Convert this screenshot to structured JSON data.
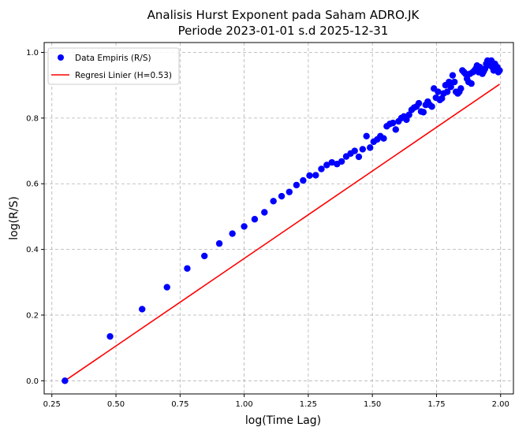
{
  "chart_data": {
    "type": "scatter",
    "title": "Analisis Hurst Exponent pada Saham ADRO.JK",
    "subtitle": "Periode 2023-01-01 s.d 2025-12-31",
    "xlabel": "log(Time Lag)",
    "ylabel": "log(R/S)",
    "xlim": [
      0.22,
      2.05
    ],
    "ylim": [
      -0.04,
      1.03
    ],
    "xticks": [
      "0.25",
      "0.50",
      "0.75",
      "1.00",
      "1.25",
      "1.50",
      "1.75",
      "2.00"
    ],
    "xtick_values": [
      0.25,
      0.5,
      0.75,
      1.0,
      1.25,
      1.5,
      1.75,
      2.0
    ],
    "yticks": [
      "0.0",
      "0.2",
      "0.4",
      "0.6",
      "0.8",
      "1.0"
    ],
    "ytick_values": [
      0.0,
      0.2,
      0.4,
      0.6,
      0.8,
      1.0
    ],
    "grid": true,
    "legend_position": "top-left",
    "series": [
      {
        "name": "Data Empiris (R/S)",
        "kind": "scatter",
        "color": "#0000ff",
        "x": [
          0.301,
          0.477,
          0.602,
          0.699,
          0.778,
          0.845,
          0.903,
          0.954,
          1.0,
          1.041,
          1.079,
          1.114,
          1.146,
          1.176,
          1.204,
          1.23,
          1.255,
          1.279,
          1.301,
          1.322,
          1.342,
          1.362,
          1.38,
          1.398,
          1.415,
          1.431,
          1.447,
          1.462,
          1.477,
          1.491,
          1.505,
          1.519,
          1.531,
          1.544,
          1.556,
          1.568,
          1.58,
          1.591,
          1.602,
          1.613,
          1.623,
          1.633,
          1.643,
          1.653,
          1.663,
          1.672,
          1.681,
          1.69,
          1.699,
          1.708,
          1.716,
          1.724,
          1.732,
          1.74,
          1.748,
          1.756,
          1.763,
          1.771,
          1.778,
          1.785,
          1.792,
          1.799,
          1.806,
          1.813,
          1.82,
          1.826,
          1.833,
          1.839,
          1.845,
          1.851,
          1.857,
          1.863,
          1.869,
          1.875,
          1.881,
          1.886,
          1.892,
          1.898,
          1.903,
          1.908,
          1.914,
          1.919,
          1.924,
          1.929,
          1.934,
          1.939,
          1.944,
          1.949,
          1.954,
          1.959,
          1.964,
          1.968,
          1.973,
          1.978,
          1.982,
          1.987,
          1.991,
          1.996
        ],
        "y": [
          0.0,
          0.135,
          0.218,
          0.285,
          0.342,
          0.38,
          0.418,
          0.448,
          0.47,
          0.492,
          0.513,
          0.547,
          0.562,
          0.575,
          0.596,
          0.61,
          0.625,
          0.626,
          0.645,
          0.657,
          0.665,
          0.66,
          0.668,
          0.683,
          0.692,
          0.7,
          0.682,
          0.705,
          0.745,
          0.71,
          0.728,
          0.735,
          0.745,
          0.738,
          0.775,
          0.782,
          0.785,
          0.765,
          0.79,
          0.8,
          0.805,
          0.795,
          0.81,
          0.825,
          0.832,
          0.835,
          0.845,
          0.82,
          0.818,
          0.84,
          0.85,
          0.84,
          0.835,
          0.89,
          0.862,
          0.88,
          0.855,
          0.86,
          0.875,
          0.9,
          0.88,
          0.91,
          0.895,
          0.93,
          0.91,
          0.88,
          0.875,
          0.88,
          0.89,
          0.945,
          0.94,
          0.935,
          0.92,
          0.91,
          0.935,
          0.905,
          0.94,
          0.945,
          0.95,
          0.96,
          0.94,
          0.955,
          0.945,
          0.935,
          0.942,
          0.95,
          0.965,
          0.975,
          0.97,
          0.96,
          0.975,
          0.955,
          0.945,
          0.965,
          0.95,
          0.955,
          0.94,
          0.945
        ]
      },
      {
        "name": "Regresi Linier (H=0.53)",
        "kind": "line",
        "color": "#ff0000",
        "x": [
          0.301,
          1.996
        ],
        "y": [
          0.0,
          0.903
        ]
      }
    ]
  }
}
